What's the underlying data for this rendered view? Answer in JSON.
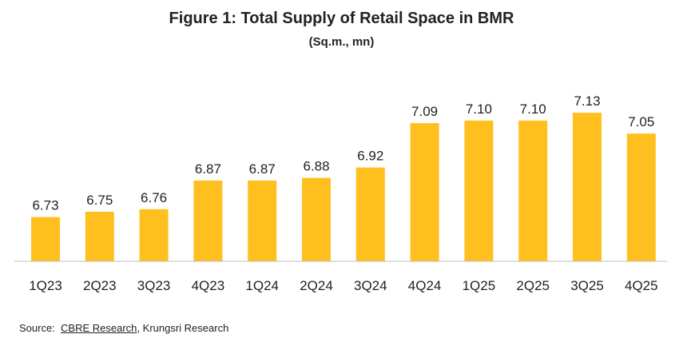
{
  "chart_data": {
    "type": "bar",
    "title": "Figure 1: Total Supply of Retail Space in BMR",
    "subtitle": "(Sq.m., mn)",
    "xlabel": "",
    "ylabel": "",
    "categories": [
      "1Q23",
      "2Q23",
      "3Q23",
      "4Q23",
      "1Q24",
      "2Q24",
      "3Q24",
      "4Q24",
      "1Q25",
      "2Q25",
      "3Q25",
      "4Q25"
    ],
    "values": [
      6.73,
      6.75,
      6.76,
      6.87,
      6.87,
      6.88,
      6.92,
      7.09,
      7.1,
      7.1,
      7.13,
      7.05
    ],
    "value_labels": [
      "6.73",
      "6.75",
      "6.76",
      "6.87",
      "6.87",
      "6.88",
      "6.92",
      "7.09",
      "7.10",
      "7.10",
      "7.13",
      "7.05"
    ],
    "ylim": [
      6.56,
      7.21
    ],
    "grid": false,
    "legend": "none",
    "bar_color": "#FFC01F"
  },
  "source": {
    "prefix": "Source:",
    "link": "CBRE Research",
    "suffix": ", Krungsri Research"
  }
}
